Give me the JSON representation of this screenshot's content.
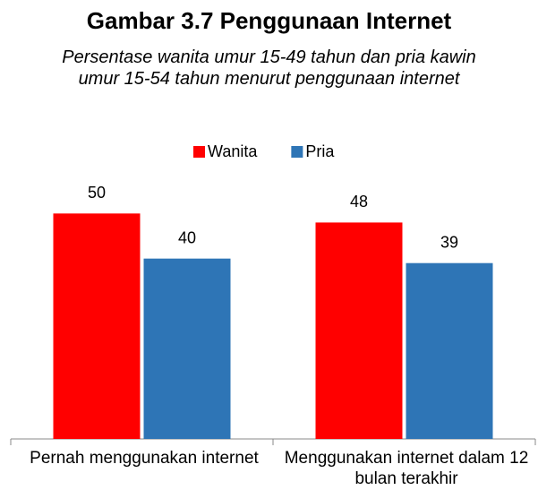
{
  "chart_data": {
    "type": "bar",
    "title": "Gambar 3.7 Penggunaan Internet",
    "subtitle": "Persentase wanita umur 15-49 tahun dan pria kawin umur 15-54 tahun menurut penggunaan internet",
    "categories": [
      "Pernah menggunakan internet",
      "Menggunakan internet dalam 12 bulan terakhir"
    ],
    "series": [
      {
        "name": "Wanita",
        "color": "#ff0000",
        "values": [
          50,
          48
        ]
      },
      {
        "name": "Pria",
        "color": "#2e75b6",
        "values": [
          40,
          39
        ]
      }
    ],
    "ylim": [
      0,
      60
    ],
    "grid": false,
    "legend": "top"
  }
}
